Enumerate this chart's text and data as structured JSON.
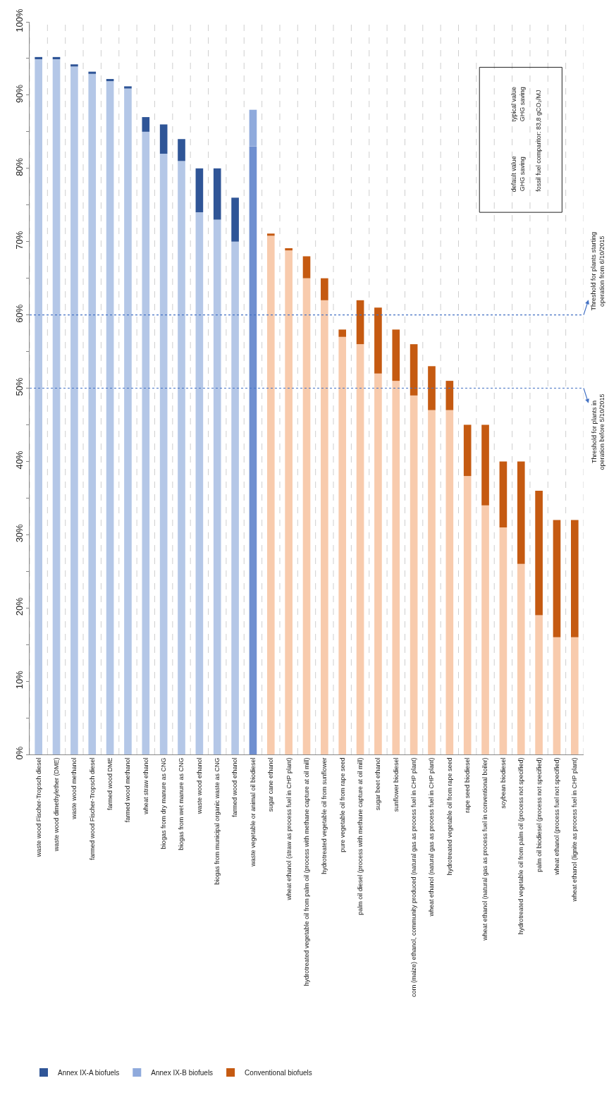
{
  "chart_data": {
    "type": "bar",
    "stacked": true,
    "categories": [
      "waste wood Fischer-Tropsch diesel",
      "waste wood dimethylether (DME)",
      "waste wood methanol",
      "farmed wood Fischer-Tropsch diesel",
      "farmed wood DME",
      "farmed wood methanol",
      "wheat straw ethanol",
      "biogas from dry manure as CNG",
      "biogas from wet manure as CNG",
      "waste wood ethanol",
      "biogas from municipal organic waste as CNG",
      "farmed wood ethanol",
      "waste vegetable or animal oil biodiesel",
      "sugar cane ethanol",
      "wheat ethanol (straw as process fuel in CHP plant)",
      "hydrotreated vegetable oil from palm oil (process with methane capture at oil mill)",
      "hydrotreated vegetable oil from sunflower",
      "pure vegetable oil from rape seed",
      "palm oil diesel (process with methane capture at oil mill)",
      "sugar beet ethanol",
      "sunflower biodiesel",
      "corn (maize) ethanol, community produced (natural gas as process fuel in CHP plant)",
      "wheat ethanol (natural gas as process fuel in CHP plant)",
      "hydrotreated vegetable oil from rape seed",
      "rape seed biodiesel",
      "wheat ethanol (natural gas as process fuel in conventional boiler)",
      "soybean biodiesel",
      "hydrotreated vegetable oil from palm oil (process not specified)",
      "palm oil biodiesel (process not specified)",
      "wheat ethanol (process fuel not specified)",
      "wheat ethanol (lignite as process fuel in CHP plant)"
    ],
    "series": [
      {
        "color": "#b4c7e7",
        "values": [
          94.9,
          94.9,
          93.9,
          92.9,
          91.9,
          90.9,
          85,
          82,
          81,
          74,
          73,
          70,
          null,
          null,
          null,
          null,
          null,
          null,
          null,
          null,
          null,
          null,
          null,
          null,
          null,
          null,
          null,
          null,
          null,
          null,
          null
        ]
      },
      {
        "color": "#6f8fd0",
        "values": [
          null,
          null,
          null,
          null,
          null,
          null,
          null,
          null,
          null,
          null,
          null,
          null,
          83,
          null,
          null,
          null,
          null,
          null,
          null,
          null,
          null,
          null,
          null,
          null,
          null,
          null,
          null,
          null,
          null,
          null,
          null
        ]
      },
      {
        "color": "#f8cbad",
        "values": [
          null,
          null,
          null,
          null,
          null,
          null,
          null,
          null,
          null,
          null,
          null,
          null,
          null,
          70.8,
          68.8,
          65,
          62,
          57,
          56,
          52,
          51,
          49,
          47,
          47,
          38,
          34,
          31,
          26,
          19,
          16,
          16
        ]
      },
      {
        "name": "Annex IX-A biofuels",
        "color": "#2f5597",
        "values": [
          0.3,
          0.3,
          0.3,
          0.3,
          0.3,
          0.3,
          2,
          4,
          3,
          6,
          7,
          6,
          null,
          null,
          null,
          null,
          null,
          null,
          null,
          null,
          null,
          null,
          null,
          null,
          null,
          null,
          null,
          null,
          null,
          null,
          null
        ]
      },
      {
        "name": "Annex IX-B biofuels",
        "color": "#8faadc",
        "values": [
          null,
          null,
          null,
          null,
          null,
          null,
          null,
          null,
          null,
          null,
          null,
          null,
          5,
          null,
          null,
          null,
          null,
          null,
          null,
          null,
          null,
          null,
          null,
          null,
          null,
          null,
          null,
          null,
          null,
          null,
          null
        ]
      },
      {
        "name": "Conventional biofuels",
        "color": "#c55a11",
        "values": [
          null,
          null,
          null,
          null,
          null,
          null,
          null,
          null,
          null,
          null,
          null,
          null,
          null,
          0.3,
          0.3,
          3,
          3,
          1,
          6,
          9,
          7,
          7,
          6,
          4,
          7,
          11,
          9,
          14,
          17,
          16,
          16
        ]
      }
    ],
    "ylim": [
      0,
      100
    ],
    "yticks": [
      {
        "value": 0,
        "label": "0%"
      },
      {
        "value": 5,
        "label": null
      },
      {
        "value": 10,
        "label": "10%"
      },
      {
        "value": 15,
        "label": null
      },
      {
        "value": 20,
        "label": "20%"
      },
      {
        "value": 25,
        "label": null
      },
      {
        "value": 30,
        "label": "30%"
      },
      {
        "value": 35,
        "label": null
      },
      {
        "value": 40,
        "label": "40%"
      },
      {
        "value": 45,
        "label": null
      },
      {
        "value": 50,
        "label": "50%"
      },
      {
        "value": 55,
        "label": null
      },
      {
        "value": 60,
        "label": "60%"
      },
      {
        "value": 65,
        "label": null
      },
      {
        "value": 70,
        "label": "70%"
      },
      {
        "value": 75,
        "label": null
      },
      {
        "value": 80,
        "label": "80%"
      },
      {
        "value": 85,
        "label": null
      },
      {
        "value": 90,
        "label": "90%"
      },
      {
        "value": 95,
        "label": null
      },
      {
        "value": 100,
        "label": "100%"
      }
    ],
    "ref_lines": [
      {
        "axis": "y",
        "value": 60,
        "label": "Threshold for plants starting operation from 6/10/2015",
        "color": "#4472c4",
        "line_style": "dotted"
      },
      {
        "axis": "y",
        "value": 50,
        "label": "Threshold for plants in operation before 5/10/2015",
        "color": "#4472c4",
        "line_style": "dotted"
      }
    ],
    "annotations": [
      "default value GHG saving",
      "typical value GHG saving",
      "fossil fuel comparitor: 83,8 gCO₂/MJ"
    ],
    "grid": "x",
    "legend": "bottom left"
  }
}
